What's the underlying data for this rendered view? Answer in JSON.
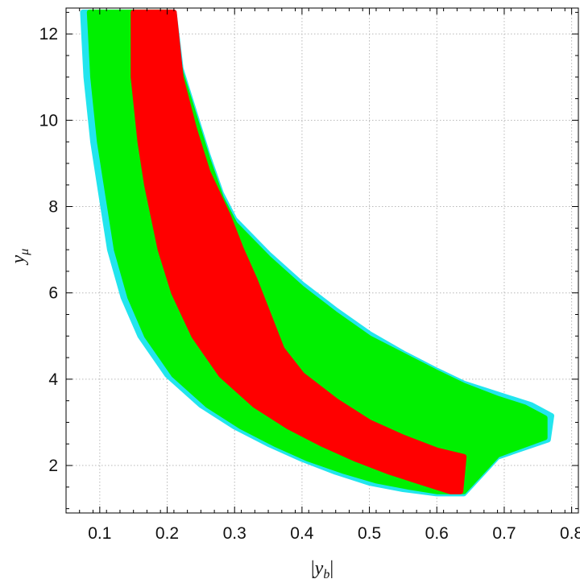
{
  "chart_data": {
    "type": "scatter",
    "xlabel": {
      "pre": "|",
      "main": "y",
      "sub": "b",
      "post": "|"
    },
    "ylabel": {
      "main": "y",
      "sub": "μ"
    },
    "xlim": [
      0.05,
      0.81
    ],
    "ylim": [
      0.9,
      12.6
    ],
    "xticks": [
      0.1,
      0.2,
      0.3,
      0.4,
      0.5,
      0.6,
      0.7,
      0.8
    ],
    "xtick_labels": [
      "0.1",
      "0.2",
      "0.3",
      "0.4",
      "0.5",
      "0.6",
      "0.7",
      "0.8"
    ],
    "yticks": [
      2,
      4,
      6,
      8,
      10,
      12
    ],
    "ytick_labels": [
      "2",
      "4",
      "6",
      "8",
      "10",
      "12"
    ],
    "grid": true,
    "colors": {
      "cyan": "#22e5ee",
      "green": "#00f000",
      "red": "#ff0000",
      "blue": "#1010d0"
    },
    "regions": [
      {
        "color": "cyan",
        "boundary": [
          [
            0.075,
            12.5
          ],
          [
            0.08,
            11.0
          ],
          [
            0.09,
            9.5
          ],
          [
            0.1,
            8.5
          ],
          [
            0.115,
            7.0
          ],
          [
            0.135,
            5.9
          ],
          [
            0.16,
            5.0
          ],
          [
            0.2,
            4.1
          ],
          [
            0.25,
            3.4
          ],
          [
            0.3,
            2.9
          ],
          [
            0.35,
            2.5
          ],
          [
            0.4,
            2.15
          ],
          [
            0.45,
            1.85
          ],
          [
            0.5,
            1.6
          ],
          [
            0.55,
            1.45
          ],
          [
            0.6,
            1.35
          ],
          [
            0.64,
            1.35
          ],
          [
            0.69,
            2.2
          ],
          [
            0.765,
            2.6
          ],
          [
            0.77,
            3.15
          ],
          [
            0.74,
            3.4
          ],
          [
            0.7,
            3.6
          ],
          [
            0.64,
            3.9
          ],
          [
            0.6,
            4.2
          ],
          [
            0.55,
            4.6
          ],
          [
            0.5,
            5.05
          ],
          [
            0.45,
            5.6
          ],
          [
            0.4,
            6.2
          ],
          [
            0.35,
            6.9
          ],
          [
            0.3,
            7.7
          ],
          [
            0.28,
            8.3
          ],
          [
            0.26,
            9.2
          ],
          [
            0.24,
            10.2
          ],
          [
            0.22,
            11.2
          ],
          [
            0.21,
            12.5
          ]
        ]
      },
      {
        "color": "green",
        "boundary": [
          [
            0.085,
            12.5
          ],
          [
            0.09,
            11.0
          ],
          [
            0.1,
            9.5
          ],
          [
            0.11,
            8.5
          ],
          [
            0.125,
            7.0
          ],
          [
            0.145,
            5.9
          ],
          [
            0.17,
            5.0
          ],
          [
            0.21,
            4.1
          ],
          [
            0.26,
            3.4
          ],
          [
            0.31,
            2.9
          ],
          [
            0.36,
            2.5
          ],
          [
            0.41,
            2.15
          ],
          [
            0.46,
            1.88
          ],
          [
            0.51,
            1.65
          ],
          [
            0.56,
            1.5
          ],
          [
            0.6,
            1.4
          ],
          [
            0.64,
            1.4
          ],
          [
            0.69,
            2.25
          ],
          [
            0.76,
            2.65
          ],
          [
            0.76,
            3.1
          ],
          [
            0.73,
            3.35
          ],
          [
            0.69,
            3.55
          ],
          [
            0.64,
            3.85
          ],
          [
            0.6,
            4.15
          ],
          [
            0.55,
            4.55
          ],
          [
            0.5,
            4.95
          ],
          [
            0.45,
            5.5
          ],
          [
            0.4,
            6.1
          ],
          [
            0.35,
            6.8
          ],
          [
            0.3,
            7.6
          ],
          [
            0.28,
            8.2
          ],
          [
            0.26,
            9.1
          ],
          [
            0.24,
            10.1
          ],
          [
            0.22,
            11.1
          ],
          [
            0.205,
            12.5
          ]
        ]
      },
      {
        "color": "red",
        "boundary": [
          [
            0.15,
            12.5
          ],
          [
            0.15,
            11.0
          ],
          [
            0.16,
            9.5
          ],
          [
            0.17,
            8.5
          ],
          [
            0.19,
            7.0
          ],
          [
            0.21,
            6.0
          ],
          [
            0.24,
            5.0
          ],
          [
            0.28,
            4.1
          ],
          [
            0.33,
            3.4
          ],
          [
            0.38,
            2.9
          ],
          [
            0.43,
            2.5
          ],
          [
            0.48,
            2.15
          ],
          [
            0.53,
            1.85
          ],
          [
            0.58,
            1.6
          ],
          [
            0.62,
            1.4
          ],
          [
            0.635,
            1.4
          ],
          [
            0.64,
            2.2
          ],
          [
            0.6,
            2.35
          ],
          [
            0.55,
            2.65
          ],
          [
            0.5,
            3.0
          ],
          [
            0.45,
            3.5
          ],
          [
            0.4,
            4.1
          ],
          [
            0.37,
            4.7
          ],
          [
            0.35,
            5.5
          ],
          [
            0.33,
            6.3
          ],
          [
            0.31,
            7.0
          ],
          [
            0.29,
            7.8
          ],
          [
            0.26,
            8.8
          ],
          [
            0.24,
            9.8
          ],
          [
            0.22,
            11.0
          ],
          [
            0.21,
            12.5
          ]
        ]
      }
    ]
  }
}
